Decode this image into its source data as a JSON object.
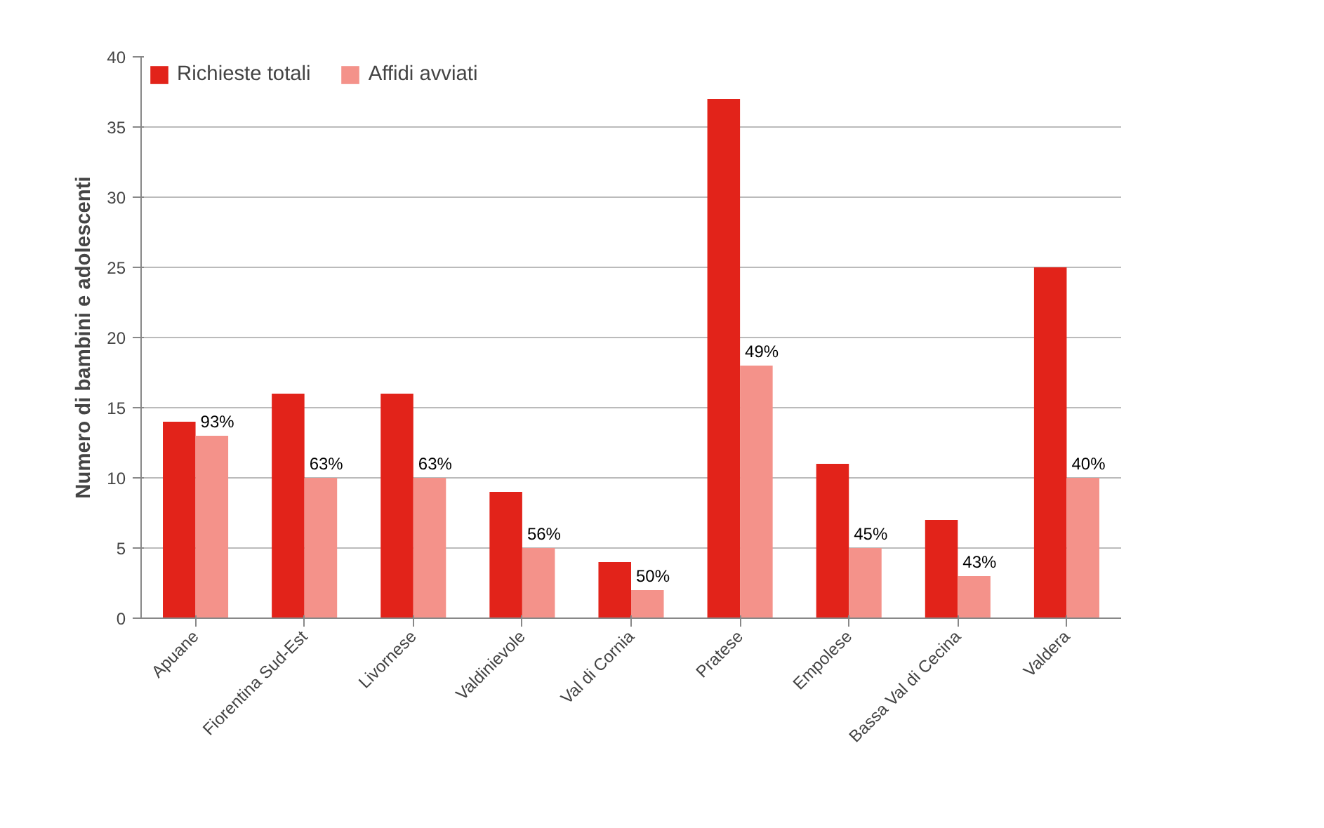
{
  "chart_data": {
    "type": "bar",
    "ylabel": "Numero di bambini e adolescenti",
    "categories": [
      "Apuane",
      "Fiorentina Sud-Est",
      "Livornese",
      "Valdinievole",
      "Val di Cornia",
      "Pratese",
      "Empolese",
      "Bassa Val di Cecina",
      "Valdera"
    ],
    "series": [
      {
        "name": "Richieste totali",
        "color": "#e2231a",
        "values": [
          14,
          16,
          16,
          9,
          4,
          37,
          11,
          7,
          25
        ]
      },
      {
        "name": "Affidi avviati",
        "color": "#f4928a",
        "values": [
          13,
          10,
          10,
          5,
          2,
          18,
          5,
          3,
          10
        ]
      }
    ],
    "annotations": [
      {
        "text": "93%",
        "x": "Apuane",
        "y": 13
      },
      {
        "text": "63%",
        "x": "Fiorentina Sud-Est",
        "y": 10
      },
      {
        "text": "63%",
        "x": "Livornese",
        "y": 10
      },
      {
        "text": "56%",
        "x": "Valdinievole",
        "y": 5
      },
      {
        "text": "50%",
        "x": "Val di Cornia",
        "y": 2
      },
      {
        "text": "49%",
        "x": "Pratese",
        "y": 18
      },
      {
        "text": "45%",
        "x": "Empolese",
        "y": 5
      },
      {
        "text": "43%",
        "x": "Bassa Val di Cecina",
        "y": 3
      },
      {
        "text": "40%",
        "x": "Valdera",
        "y": 10
      }
    ],
    "ylim": [
      0,
      40
    ],
    "yticks": [
      0,
      5,
      10,
      15,
      20,
      25,
      30,
      35,
      40
    ],
    "grid": "y",
    "legend": "top left"
  }
}
